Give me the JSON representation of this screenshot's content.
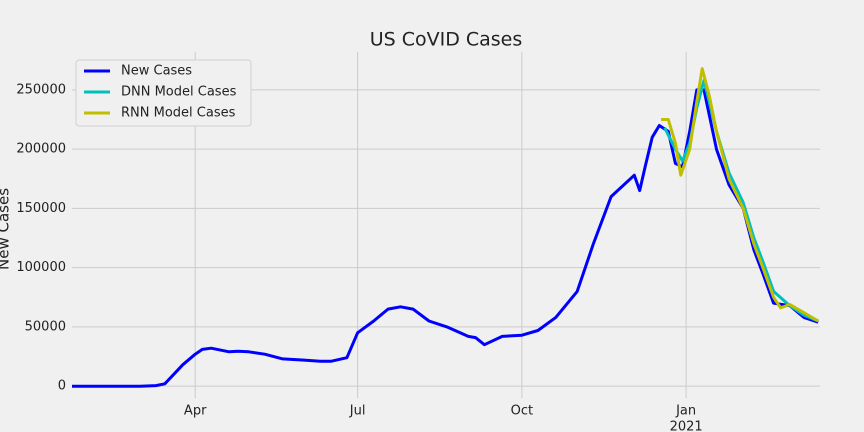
{
  "chart_data": {
    "type": "line",
    "title": "US CoVID Cases",
    "ylabel": "New Cases",
    "xlim": [
      "2020-01-23",
      "2021-03-17"
    ],
    "xticks": [
      {
        "value": "2020-04-01",
        "label": "Apr"
      },
      {
        "value": "2020-07-01",
        "label": "Jul"
      },
      {
        "value": "2020-10-01",
        "label": "Oct"
      },
      {
        "value": "2021-01-01",
        "label": "Jan"
      }
    ],
    "xtick_year": {
      "value": "2021-01-01",
      "label": "2021"
    },
    "ylim": [
      -10000,
      282000
    ],
    "yticks": [
      0,
      50000,
      100000,
      150000,
      200000,
      250000
    ],
    "grid": true,
    "legend": "upper left",
    "series": [
      {
        "name": "New Cases",
        "color": "#0000ff",
        "x": [
          "2020-01-23",
          "2020-03-01",
          "2020-03-10",
          "2020-03-15",
          "2020-03-20",
          "2020-03-25",
          "2020-04-01",
          "2020-04-05",
          "2020-04-10",
          "2020-04-20",
          "2020-04-25",
          "2020-05-01",
          "2020-05-10",
          "2020-05-20",
          "2020-06-01",
          "2020-06-10",
          "2020-06-16",
          "2020-06-25",
          "2020-07-01",
          "2020-07-10",
          "2020-07-18",
          "2020-07-25",
          "2020-08-01",
          "2020-08-10",
          "2020-08-20",
          "2020-09-01",
          "2020-09-05",
          "2020-09-10",
          "2020-09-20",
          "2020-10-01",
          "2020-10-10",
          "2020-10-20",
          "2020-11-01",
          "2020-11-10",
          "2020-11-20",
          "2020-12-03",
          "2020-12-06",
          "2020-12-09",
          "2020-12-13",
          "2020-12-17",
          "2020-12-22",
          "2020-12-26",
          "2020-12-30",
          "2021-01-03",
          "2021-01-07",
          "2021-01-11",
          "2021-01-18",
          "2021-01-25",
          "2021-02-02",
          "2021-02-08",
          "2021-02-13",
          "2021-02-19",
          "2021-02-28",
          "2021-03-08",
          "2021-03-16"
        ],
        "values": [
          0,
          0,
          500,
          2000,
          10000,
          18000,
          27000,
          31000,
          32000,
          29000,
          29500,
          29000,
          27000,
          23000,
          22000,
          21000,
          21000,
          24000,
          45000,
          55000,
          65000,
          67000,
          65000,
          55000,
          50000,
          42000,
          41000,
          35000,
          42000,
          43000,
          47000,
          58000,
          80000,
          120000,
          160000,
          178000,
          165000,
          185000,
          210000,
          220000,
          215000,
          188000,
          185000,
          215000,
          250000,
          250000,
          200000,
          170000,
          150000,
          115000,
          95000,
          70000,
          68000,
          58000,
          54000
        ]
      },
      {
        "name": "DNN Model Cases",
        "color": "#00bfbf",
        "x": [
          "2020-12-20",
          "2020-12-26",
          "2020-12-30",
          "2021-01-03",
          "2021-01-07",
          "2021-01-11",
          "2021-01-18",
          "2021-01-25",
          "2021-02-02",
          "2021-02-08",
          "2021-02-13",
          "2021-02-19",
          "2021-02-28",
          "2021-03-08",
          "2021-03-16"
        ],
        "values": [
          218000,
          200000,
          190000,
          205000,
          235000,
          258000,
          215000,
          180000,
          155000,
          125000,
          105000,
          80000,
          68000,
          60000,
          55000
        ]
      },
      {
        "name": "RNN Model Cases",
        "color": "#bfbf00",
        "x": [
          "2020-12-18",
          "2020-12-22",
          "2020-12-26",
          "2020-12-29",
          "2021-01-03",
          "2021-01-07",
          "2021-01-10",
          "2021-01-14",
          "2021-01-18",
          "2021-01-25",
          "2021-02-02",
          "2021-02-08",
          "2021-02-13",
          "2021-02-19",
          "2021-02-23",
          "2021-02-28",
          "2021-03-08",
          "2021-03-16"
        ],
        "values": [
          225000,
          225000,
          205000,
          178000,
          200000,
          240000,
          268000,
          245000,
          215000,
          175000,
          150000,
          120000,
          100000,
          75000,
          66000,
          69000,
          62000,
          55000
        ]
      }
    ]
  }
}
